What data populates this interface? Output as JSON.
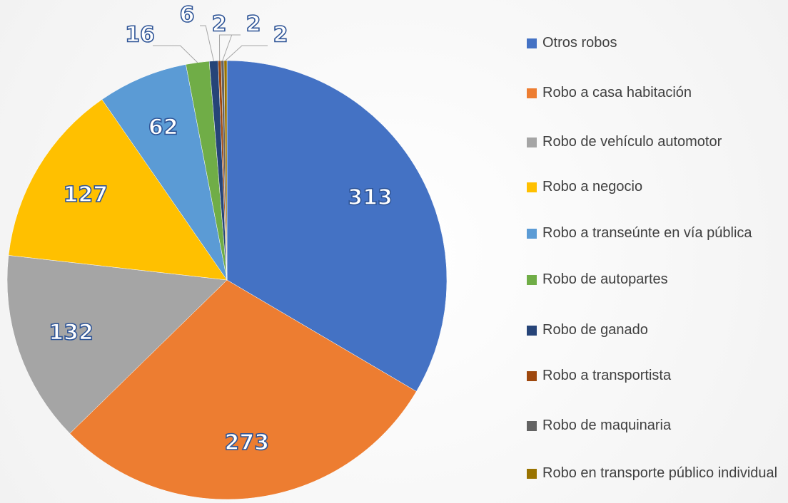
{
  "chart_data": {
    "type": "pie",
    "categories": [
      "Otros robos",
      "Robo a casa habitación",
      "Robo de vehículo automotor",
      "Robo a negocio",
      "Robo a transeúnte en vía pública",
      "Robo de autopartes",
      "Robo de ganado",
      "Robo a transportista",
      "Robo de maquinaria",
      "Robo en transporte público individual"
    ],
    "values": [
      313,
      273,
      132,
      127,
      62,
      16,
      6,
      2,
      2,
      2
    ],
    "colors": [
      "#4472c4",
      "#ed7d31",
      "#a5a5a5",
      "#ffc000",
      "#5b9bd5",
      "#70ad47",
      "#264478",
      "#9e480e",
      "#636363",
      "#997300"
    ],
    "legend": "right"
  }
}
